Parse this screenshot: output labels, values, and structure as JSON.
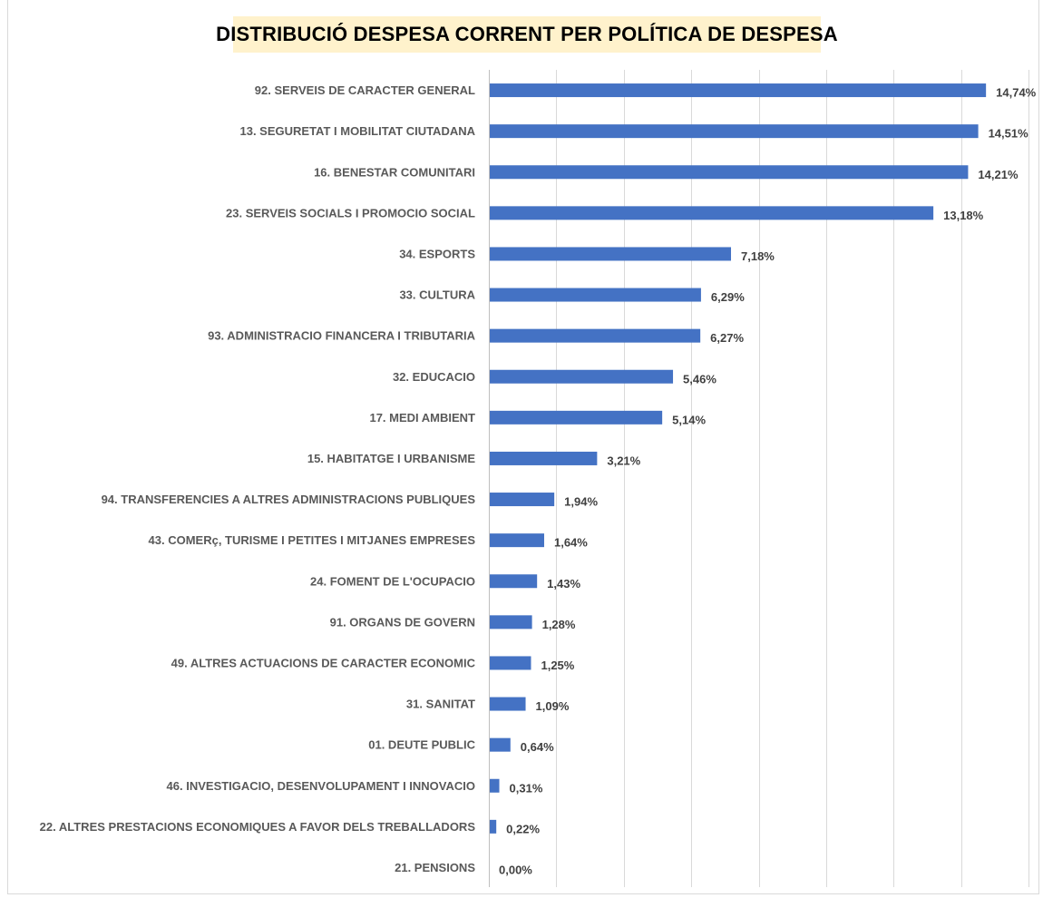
{
  "chart_data": {
    "type": "bar",
    "orientation": "horizontal",
    "title": "DISTRIBUCIÓ DESPESA CORRENT PER POLÍTICA DE DESPESA",
    "categories": [
      "92. SERVEIS DE CARACTER GENERAL",
      "13. SEGURETAT I MOBILITAT CIUTADANA",
      "16. BENESTAR COMUNITARI",
      "23. SERVEIS SOCIALS I PROMOCIO SOCIAL",
      "34. ESPORTS",
      "33. CULTURA",
      "93. ADMINISTRACIO FINANCERA I TRIBUTARIA",
      "32. EDUCACIO",
      "17. MEDI AMBIENT",
      "15. HABITATGE I URBANISME",
      "94. TRANSFERENCIES A ALTRES ADMINISTRACIONS PUBLIQUES",
      "43. COMERç, TURISME I PETITES I MITJANES EMPRESES",
      "24. FOMENT DE L'OCUPACIO",
      "91. ORGANS DE GOVERN",
      "49. ALTRES ACTUACIONS DE CARACTER ECONOMIC",
      "31. SANITAT",
      "01. DEUTE PUBLIC",
      "46. INVESTIGACIO, DESENVOLUPAMENT I INNOVACIO",
      "22. ALTRES PRESTACIONS ECONOMIQUES A FAVOR DELS TREBALLADORS",
      "21. PENSIONS"
    ],
    "values": [
      14.74,
      14.51,
      14.21,
      13.18,
      7.18,
      6.29,
      6.27,
      5.46,
      5.14,
      3.21,
      1.94,
      1.64,
      1.43,
      1.28,
      1.25,
      1.09,
      0.64,
      0.31,
      0.22,
      0.0
    ],
    "value_labels": [
      "14,74%",
      "14,51%",
      "14,21%",
      "13,18%",
      "7,18%",
      "6,29%",
      "6,27%",
      "5,46%",
      "5,14%",
      "3,21%",
      "1,94%",
      "1,64%",
      "1,43%",
      "1,28%",
      "1,25%",
      "1,09%",
      "0,64%",
      "0,31%",
      "0,22%",
      "0,00%"
    ],
    "xlim": [
      0,
      16
    ],
    "x_gridline_step": 2,
    "grid": true,
    "bar_color": "#4472c4",
    "title_background": "#fff2cc"
  }
}
